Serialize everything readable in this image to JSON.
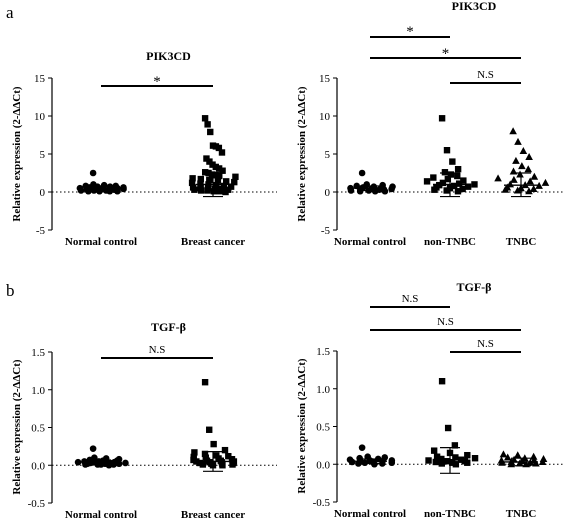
{
  "panels": {
    "a": "a",
    "b": "b"
  },
  "colors": {
    "ink": "#000000"
  },
  "chart_data": [
    {
      "type": "scatter",
      "title": "PIK3CD",
      "ylabel": "Relative expression (2-ΔΔCt)",
      "ylim": [
        -5,
        15
      ],
      "yticks": [
        -5,
        0,
        5,
        10,
        15
      ],
      "ytick_labels": [
        "-5",
        "0",
        "5",
        "10",
        "15"
      ],
      "categories": [
        "Normal control",
        "Breast cancer"
      ],
      "zero_line": "dotted",
      "series": [
        {
          "category": "Normal control",
          "marker": "circle",
          "mean": 0.5,
          "sd_upper": 0.8,
          "sd_lower": 0.2,
          "values": [
            2.5,
            1.0,
            0.9,
            0.8,
            0.8,
            0.7,
            0.7,
            0.6,
            0.6,
            0.5,
            0.5,
            0.5,
            0.4,
            0.4,
            0.4,
            0.3,
            0.3,
            0.3,
            0.2,
            0.2,
            0.2,
            0.1,
            0.1,
            0.1,
            0.1
          ]
        },
        {
          "category": "Breast cancer",
          "marker": "square",
          "mean": 1.0,
          "sd_upper": 2.6,
          "sd_lower": -0.6,
          "values": [
            9.7,
            8.9,
            7.9,
            6.1,
            6.0,
            5.8,
            5.2,
            4.4,
            4.0,
            3.6,
            3.3,
            3.1,
            2.8,
            2.6,
            2.5,
            2.3,
            2.2,
            2.1,
            2.0,
            1.8,
            1.7,
            1.6,
            1.5,
            1.4,
            1.3,
            1.2,
            1.1,
            1.0,
            0.9,
            0.8,
            0.7,
            0.6,
            0.5,
            0.5,
            0.4,
            0.4,
            0.3,
            0.3,
            0.2,
            0.2,
            0.1,
            0.1,
            0.0
          ]
        }
      ],
      "comparisons": [
        {
          "from": "Normal control",
          "to": "Breast cancer",
          "label": "*"
        }
      ]
    },
    {
      "type": "scatter",
      "title": "PIK3CD",
      "ylabel": "Relative expression (2-ΔΔCt)",
      "ylim": [
        -5,
        15
      ],
      "yticks": [
        -5,
        0,
        5,
        10,
        15
      ],
      "ytick_labels": [
        "-5",
        "0",
        "5",
        "10",
        "15"
      ],
      "categories": [
        "Normal control",
        "non-TNBC",
        "TNBC"
      ],
      "zero_line": "dotted",
      "series": [
        {
          "category": "Normal control",
          "marker": "circle",
          "mean": 0.5,
          "sd_upper": 0.8,
          "sd_lower": 0.2,
          "values": [
            2.5,
            1.0,
            0.9,
            0.8,
            0.7,
            0.7,
            0.6,
            0.5,
            0.5,
            0.4,
            0.4,
            0.3,
            0.3,
            0.2,
            0.2,
            0.1,
            0.1,
            0.1
          ]
        },
        {
          "category": "non-TNBC",
          "marker": "square",
          "mean": 1.0,
          "sd_upper": 2.5,
          "sd_lower": -0.6,
          "values": [
            9.7,
            5.5,
            4.0,
            3.0,
            2.6,
            2.3,
            2.1,
            1.9,
            1.7,
            1.5,
            1.4,
            1.2,
            1.1,
            1.0,
            0.9,
            0.8,
            0.7,
            0.6,
            0.5,
            0.4,
            0.3,
            0.2,
            0.1
          ]
        },
        {
          "category": "TNBC",
          "marker": "triangle",
          "mean": 0.9,
          "sd_upper": 2.5,
          "sd_lower": -0.6,
          "values": [
            8.0,
            6.6,
            5.4,
            4.6,
            4.1,
            3.4,
            3.0,
            2.7,
            2.3,
            2.0,
            1.8,
            1.6,
            1.4,
            1.2,
            1.0,
            0.9,
            0.8,
            0.6,
            0.5,
            0.4,
            0.3,
            0.2,
            0.1
          ]
        }
      ],
      "comparisons": [
        {
          "from": "Normal control",
          "to": "non-TNBC",
          "label": "*"
        },
        {
          "from": "Normal control",
          "to": "TNBC",
          "label": "*"
        },
        {
          "from": "non-TNBC",
          "to": "TNBC",
          "label": "N.S"
        }
      ]
    },
    {
      "type": "scatter",
      "title": "TGF-β",
      "ylabel": "Relative expression (2-ΔΔCt)",
      "ylim": [
        -0.5,
        1.5
      ],
      "yticks": [
        -0.5,
        0,
        0.5,
        1.0,
        1.5
      ],
      "ytick_labels": [
        "-0.5",
        "0.0",
        "0.5",
        "1.0",
        "1.5"
      ],
      "categories": [
        "Normal control",
        "Breast cancer"
      ],
      "zero_line": "dotted",
      "series": [
        {
          "category": "Normal control",
          "marker": "circle",
          "mean": 0.04,
          "sd_upper": 0.07,
          "sd_lower": 0.01,
          "values": [
            0.22,
            0.1,
            0.09,
            0.08,
            0.07,
            0.06,
            0.06,
            0.05,
            0.05,
            0.04,
            0.04,
            0.04,
            0.03,
            0.03,
            0.03,
            0.02,
            0.02,
            0.02,
            0.01,
            0.01,
            0.01,
            0.01,
            0.0
          ]
        },
        {
          "category": "Breast cancer",
          "marker": "square",
          "mean": 0.05,
          "sd_upper": 0.18,
          "sd_lower": -0.08,
          "values": [
            1.1,
            0.47,
            0.28,
            0.2,
            0.17,
            0.15,
            0.13,
            0.12,
            0.11,
            0.1,
            0.09,
            0.08,
            0.07,
            0.06,
            0.06,
            0.05,
            0.05,
            0.04,
            0.04,
            0.03,
            0.03,
            0.02,
            0.02,
            0.01,
            0.01,
            0.0,
            0.0
          ]
        }
      ],
      "comparisons": [
        {
          "from": "Normal control",
          "to": "Breast cancer",
          "label": "N.S"
        }
      ]
    },
    {
      "type": "scatter",
      "title": "TGF-β",
      "ylabel": "Relative expression (2-ΔΔCt)",
      "ylim": [
        -0.5,
        1.5
      ],
      "yticks": [
        -0.5,
        0,
        0.5,
        1.0,
        1.5
      ],
      "ytick_labels": [
        "-0.5",
        "0.0",
        "0.5",
        "1.0",
        "1.5"
      ],
      "categories": [
        "Normal control",
        "non-TNBC",
        "TNBC"
      ],
      "zero_line": "dotted",
      "series": [
        {
          "category": "Normal control",
          "marker": "circle",
          "mean": 0.04,
          "sd_upper": 0.07,
          "sd_lower": 0.01,
          "values": [
            0.22,
            0.1,
            0.09,
            0.08,
            0.07,
            0.06,
            0.05,
            0.05,
            0.04,
            0.04,
            0.03,
            0.03,
            0.02,
            0.02,
            0.01,
            0.01,
            0.0
          ]
        },
        {
          "category": "non-TNBC",
          "marker": "square",
          "mean": 0.06,
          "sd_upper": 0.22,
          "sd_lower": -0.12,
          "values": [
            1.1,
            0.48,
            0.25,
            0.18,
            0.15,
            0.12,
            0.1,
            0.09,
            0.08,
            0.07,
            0.06,
            0.05,
            0.04,
            0.04,
            0.03,
            0.02,
            0.02,
            0.01,
            0.0
          ]
        },
        {
          "category": "TNBC",
          "marker": "triangle",
          "mean": 0.03,
          "sd_upper": 0.08,
          "sd_lower": -0.02,
          "values": [
            0.13,
            0.12,
            0.1,
            0.09,
            0.08,
            0.07,
            0.06,
            0.05,
            0.05,
            0.04,
            0.03,
            0.03,
            0.02,
            0.02,
            0.01,
            0.01,
            0.0,
            0.0
          ]
        }
      ],
      "comparisons": [
        {
          "from": "Normal control",
          "to": "non-TNBC",
          "label": "N.S"
        },
        {
          "from": "Normal control",
          "to": "TNBC",
          "label": "N.S"
        },
        {
          "from": "non-TNBC",
          "to": "TNBC",
          "label": "N.S"
        }
      ]
    }
  ]
}
